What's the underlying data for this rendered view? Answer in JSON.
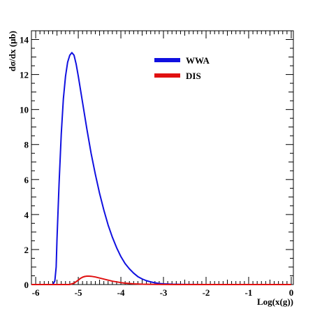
{
  "chart_data": {
    "type": "line",
    "xlabel": "Log(x(g))",
    "ylabel": "dσ/dx (μb)",
    "xlim": [
      -6.1,
      0.05
    ],
    "ylim": [
      0,
      14.5
    ],
    "xticks": [
      -6,
      -5,
      -4,
      -3,
      -2,
      -1,
      0
    ],
    "yticks": [
      0,
      2,
      4,
      6,
      8,
      10,
      12,
      14
    ],
    "grid": false,
    "legend_position": "top-right",
    "series": [
      {
        "name": "WWA",
        "color": "#1010e0",
        "x": [
          -6.1,
          -5.6,
          -5.55,
          -5.52,
          -5.5,
          -5.45,
          -5.4,
          -5.35,
          -5.3,
          -5.25,
          -5.2,
          -5.15,
          -5.1,
          -5.05,
          -5.0,
          -4.9,
          -4.8,
          -4.7,
          -4.6,
          -4.5,
          -4.4,
          -4.3,
          -4.2,
          -4.1,
          -4.0,
          -3.9,
          -3.8,
          -3.7,
          -3.6,
          -3.5,
          -3.4,
          -3.3,
          -3.2,
          -3.1,
          -3.0,
          -2.8,
          -2.6,
          -2.4,
          -2.0,
          -1.5,
          -1.0,
          -0.5,
          0.0
        ],
        "y": [
          0,
          0,
          0.2,
          1.0,
          2.6,
          5.8,
          8.6,
          10.6,
          11.9,
          12.7,
          13.1,
          13.25,
          13.1,
          12.6,
          11.9,
          10.4,
          8.9,
          7.5,
          6.3,
          5.2,
          4.25,
          3.4,
          2.7,
          2.1,
          1.6,
          1.2,
          0.9,
          0.65,
          0.45,
          0.32,
          0.22,
          0.15,
          0.1,
          0.06,
          0.04,
          0.02,
          0.01,
          0.005,
          0,
          0,
          0,
          0,
          0
        ]
      },
      {
        "name": "DIS",
        "color": "#e01010",
        "x": [
          -6.1,
          -5.2,
          -5.1,
          -5.0,
          -4.95,
          -4.9,
          -4.85,
          -4.8,
          -4.75,
          -4.7,
          -4.6,
          -4.5,
          -4.4,
          -4.3,
          -4.2,
          -4.1,
          -4.0,
          -3.9,
          -3.8,
          -3.7,
          -3.6,
          -3.5,
          -3.4,
          -3.2,
          -3.0,
          -2.5,
          -2.0,
          -1.0,
          0.0
        ],
        "y": [
          0,
          0,
          0.08,
          0.25,
          0.35,
          0.42,
          0.46,
          0.48,
          0.48,
          0.47,
          0.43,
          0.37,
          0.31,
          0.25,
          0.19,
          0.15,
          0.11,
          0.08,
          0.06,
          0.04,
          0.03,
          0.02,
          0.015,
          0.008,
          0.004,
          0.001,
          0,
          0,
          0
        ]
      }
    ]
  }
}
